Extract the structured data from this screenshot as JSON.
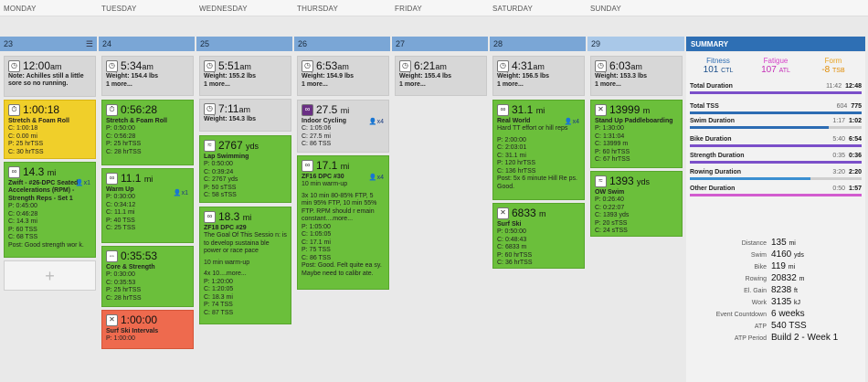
{
  "days": [
    "MONDAY",
    "TUESDAY",
    "WEDNESDAY",
    "THURSDAY",
    "FRIDAY",
    "SATURDAY",
    "SUNDAY"
  ],
  "dates": [
    "23",
    "24",
    "25",
    "26",
    "27",
    "28",
    "29"
  ],
  "metrics": {
    "mon": {
      "time": "12:00",
      "ampm": "am",
      "note": "Note: Achilles still a little sore so no running."
    },
    "tue": {
      "time": "5:34",
      "ampm": "am",
      "weight": "Weight: 154.4 lbs",
      "more": "1 more..."
    },
    "wed": {
      "time": "5:51",
      "ampm": "am",
      "weight": "Weight: 155.2 lbs",
      "more": "1 more..."
    },
    "wed2": {
      "time": "7:11",
      "ampm": "am",
      "weight": "Weight: 154.3 lbs"
    },
    "thu": {
      "time": "6:53",
      "ampm": "am",
      "weight": "Weight: 154.9 lbs",
      "more": "1 more..."
    },
    "fri": {
      "time": "6:21",
      "ampm": "am",
      "weight": "Weight: 155.4 lbs",
      "more": "1 more..."
    },
    "sat": {
      "time": "4:31",
      "ampm": "am",
      "weight": "Weight: 156.5 lbs",
      "more": "1 more..."
    },
    "sun": {
      "time": "6:03",
      "ampm": "am",
      "weight": "Weight: 153.3 lbs",
      "more": "1 more..."
    }
  },
  "workouts": {
    "mon_stretch": {
      "value": "1:00:18",
      "title": "Stretch & Foam Roll",
      "lines": [
        "C: 1:00:18",
        "C: 0.00 mi",
        "P: 25 hrTSS",
        "C: 30 hrTSS"
      ]
    },
    "mon_zwift": {
      "value": "14.3",
      "unit": "mi",
      "badge": "x1",
      "title": "Zwift - #26-DPC Seated Accelerations (RPM) - Strength Reps - Set 1",
      "lines": [
        "P: 0:45:00",
        "C: 0:46:28",
        "C: 14.3 mi",
        "P: 60 TSS",
        "C: 68 TSS"
      ],
      "post": "Post: Good strength wor k."
    },
    "tue_stretch": {
      "value": "0:56:28",
      "title": "Stretch & Foam Roll",
      "lines": [
        "P: 0:50:00",
        "C: 0:56:28",
        "P: 25 hrTSS",
        "C: 28 hrTSS"
      ]
    },
    "tue_warm": {
      "value": "11.1",
      "unit": "mi",
      "badge": "x1",
      "title": "Warm Up",
      "lines": [
        "P: 0:30:00",
        "C: 0:34:12",
        "C: 11.1 mi",
        "P: 40 TSS",
        "C: 25 TSS"
      ]
    },
    "tue_core": {
      "value": "0:35:53",
      "title": "Core & Strength",
      "lines": [
        "P: 0:30:00",
        "C: 0:35:53",
        "P: 25 hrTSS",
        "C: 28 hrTSS"
      ]
    },
    "tue_ski": {
      "value": "1:00:00",
      "title": "Surf Ski Intervals",
      "lines": [
        "P: 1:00:00"
      ]
    },
    "wed_swim": {
      "value": "2767",
      "unit": "yds",
      "title": "Lap Swimming",
      "lines": [
        "P: 0:50:00",
        "C: 0:39:24",
        "C: 2767 yds",
        "P: 50 sTSS",
        "C: 58 sTSS"
      ]
    },
    "wed_bike": {
      "value": "18.3",
      "unit": "mi",
      "title": "ZF18 DPC #29",
      "desc": "The Goal Of This Sessio n: is to develop sustaina ble power or race pace",
      "desc2": "10 min warm-up",
      "desc3": "4x 10....more...",
      "lines": [
        "P: 1:20:00",
        "C: 1:20:05",
        "C: 18.3 mi",
        "P: 74 TSS",
        "C: 87 TSS"
      ]
    },
    "thu_cyc": {
      "value": "27.5",
      "unit": "mi",
      "badge": "x4",
      "title": "Indoor Cycling",
      "lines": [
        "C: 1:05:06",
        "C: 27.5 mi",
        "C: 86 TSS"
      ]
    },
    "thu_zf": {
      "value": "17.1",
      "unit": "mi",
      "badge": "x4",
      "title": "ZF16 DPC #30",
      "desc": "10 min warm-up",
      "desc2": "3x 10 min 80-85% FTP, 5 min 95% FTP, 10 min 55% FTP. RPM should r emain constant....more...",
      "lines": [
        "P: 1:05:00",
        "C: 1:05:05",
        "C: 17.1 mi",
        "P: 75 TSS",
        "C: 86 TSS"
      ],
      "post": "Post: Good. Felt quite ea sy. Maybe need to calibr ate."
    },
    "sat_run": {
      "value": "31.1",
      "unit": "mi",
      "badge": "x4",
      "title": "Real World",
      "desc": "Hard TT effort or hill reps",
      "lines": [
        "P: 2:00:00",
        "C: 2:03:01",
        "C: 31.1 mi",
        "P: 120 hrTSS",
        "C: 136 hrTSS"
      ],
      "post": "Post: 5x 6 minute Hill Re ps. Good."
    },
    "sat_ski": {
      "value": "6833",
      "unit": "m",
      "title": "Surf Ski",
      "lines": [
        "P: 0:50:00",
        "C: 0:48:43",
        "C: 6833 m",
        "P: 60 hrTSS",
        "C: 36 hrTSS"
      ]
    },
    "sun_sup": {
      "value": "13999",
      "unit": "m",
      "title": "Stand Up Paddleboarding",
      "lines": [
        "P: 1:30:00",
        "C: 1:31:04",
        "C: 13999 m",
        "P: 60 hrTSS",
        "C: 67 hrTSS"
      ]
    },
    "sun_ow": {
      "value": "1393",
      "unit": "yds",
      "title": "OW Swim",
      "lines": [
        "P: 0:26:40",
        "C: 0:22:07",
        "C: 1393 yds",
        "P: 20 sTSS",
        "C: 24 sTSS"
      ]
    }
  },
  "summary": {
    "title": "SUMMARY",
    "fitness": {
      "label": "Fitness",
      "value": "101",
      "unit": "CTL"
    },
    "fatigue": {
      "label": "Fatigue",
      "value": "107",
      "unit": "ATL"
    },
    "form": {
      "label": "Form",
      "value": "-8",
      "unit": "TSB"
    },
    "progress": [
      {
        "label": "Total Duration",
        "planned": "11:42",
        "actual": "12:48",
        "fraction": 1.0,
        "color": "#7b4fc9"
      },
      {
        "label": "Total TSS",
        "planned": "604",
        "actual": "775",
        "fraction": 1.0,
        "color": "#2c6cb3"
      },
      {
        "label": "Swim Duration",
        "planned": "1:17",
        "actual": "1:02",
        "fraction": 0.81,
        "color": "#2c6cb3"
      },
      {
        "label": "Bike Duration",
        "planned": "5:40",
        "actual": "6:54",
        "fraction": 1.0,
        "color": "#7b4fc9"
      },
      {
        "label": "Strength Duration",
        "planned": "0:35",
        "actual": "0:36",
        "fraction": 1.0,
        "color": "#7b4fc9"
      },
      {
        "label": "Rowing Duration",
        "planned": "3:20",
        "actual": "2:20",
        "fraction": 0.7,
        "color": "#3b8fd1"
      },
      {
        "label": "Other Duration",
        "planned": "0:50",
        "actual": "1:57",
        "fraction": 1.0,
        "color": "#d25ccf"
      }
    ],
    "totals": [
      {
        "label": "Distance",
        "value": "135",
        "unit": "mi"
      },
      {
        "label": "Swim",
        "value": "4160",
        "unit": "yds"
      },
      {
        "label": "Bike",
        "value": "119",
        "unit": "mi"
      },
      {
        "label": "Rowing",
        "value": "20832",
        "unit": "m"
      },
      {
        "label": "El. Gain",
        "value": "8238",
        "unit": "ft"
      },
      {
        "label": "Work",
        "value": "3135",
        "unit": "kJ"
      },
      {
        "label": "Event Countdown",
        "value": "6 weeks",
        "unit": ""
      },
      {
        "label": "ATP",
        "value": "540 TSS",
        "unit": ""
      },
      {
        "label": "ATP Period",
        "value": "Build 2 - Week 1",
        "unit": ""
      }
    ]
  }
}
